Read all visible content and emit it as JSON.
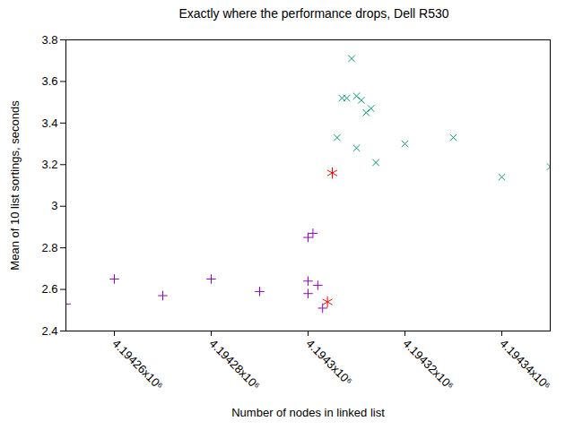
{
  "chart_data": {
    "type": "scatter",
    "title": "Exactly where the performance drops, Dell R530",
    "x_label": "Number of nodes in linked list",
    "y_label": "Mean of 10 list sortings, seconds",
    "xlim": [
      4194250,
      4194350
    ],
    "ylim": [
      2.4,
      3.8
    ],
    "xticks": [
      {
        "value": 4194260,
        "label": "4.19426x10⁶"
      },
      {
        "value": 4194280,
        "label": "4.19428x10⁶"
      },
      {
        "value": 4194300,
        "label": "4.1943x10⁶"
      },
      {
        "value": 4194320,
        "label": "4.19432x10⁶"
      },
      {
        "value": 4194340,
        "label": "4.19434x10⁶"
      }
    ],
    "yticks": [
      2.4,
      2.6,
      2.8,
      3,
      3.2,
      3.4,
      3.6,
      3.8
    ],
    "grid": false,
    "series": [
      {
        "color": "#9400d3",
        "marker": "plus",
        "x": [
          4194250,
          4194260,
          4194270,
          4194280,
          4194290,
          4194300,
          4194301,
          4194300,
          4194300,
          4194302,
          4194303
        ],
        "values": [
          2.53,
          2.65,
          2.57,
          2.65,
          2.59,
          2.85,
          2.87,
          2.64,
          2.58,
          2.62,
          2.51
        ]
      },
      {
        "color": "#009e73",
        "marker": "times",
        "x": [
          4194306,
          4194307,
          4194308,
          4194309,
          4194310,
          4194310,
          4194311,
          4194312,
          4194313,
          4194314,
          4194320,
          4194330,
          4194340,
          4194350
        ],
        "values": [
          3.33,
          3.52,
          3.52,
          3.71,
          3.53,
          3.28,
          3.51,
          3.45,
          3.47,
          3.21,
          3.3,
          3.33,
          3.14,
          3.19
        ]
      },
      {
        "color": "#ff0000",
        "marker": "asterisk",
        "x": [
          4194304,
          4194305
        ],
        "values": [
          2.54,
          3.16
        ]
      }
    ]
  }
}
